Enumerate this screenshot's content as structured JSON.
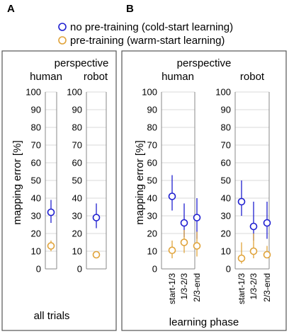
{
  "colors": {
    "series_blue": "#1f1fd0",
    "series_orange": "#e0a33a",
    "frame": "#555555",
    "axis": "#888888",
    "grid": "#d9d9d9"
  },
  "legend": [
    {
      "label": "no pre-training (cold-start learning)",
      "color": "#1f1fd0"
    },
    {
      "label": "pre-training (warm-start learning)",
      "color": "#e0a33a"
    }
  ],
  "panels": {
    "a": {
      "letter": "A",
      "perspective_label": "perspective",
      "bottom_label": "all trials"
    },
    "b": {
      "letter": "B",
      "perspective_label": "perspective",
      "bottom_label": "learning phase"
    }
  },
  "chart_data": [
    {
      "type": "scatter",
      "panel": "A",
      "ylabel": "mapping error [%]",
      "ylim": [
        0,
        100
      ],
      "yticks": [
        0,
        10,
        20,
        30,
        40,
        50,
        60,
        70,
        80,
        90,
        100
      ],
      "subplots": [
        {
          "title": "human",
          "categories": [
            ""
          ],
          "series": [
            {
              "name": "no pre-training (cold-start learning)",
              "values": [
                32
              ],
              "err_low": [
                26
              ],
              "err_high": [
                39
              ]
            },
            {
              "name": "pre-training (warm-start learning)",
              "values": [
                13
              ],
              "err_low": [
                10
              ],
              "err_high": [
                16
              ]
            }
          ]
        },
        {
          "title": "robot",
          "categories": [
            ""
          ],
          "series": [
            {
              "name": "no pre-training (cold-start learning)",
              "values": [
                29
              ],
              "err_low": [
                23
              ],
              "err_high": [
                37
              ]
            },
            {
              "name": "pre-training (warm-start learning)",
              "values": [
                8
              ],
              "err_low": [
                7
              ],
              "err_high": [
                9
              ]
            }
          ]
        }
      ]
    },
    {
      "type": "scatter",
      "panel": "B",
      "ylabel": "mapping error [%]",
      "ylim": [
        0,
        100
      ],
      "yticks": [
        0,
        10,
        20,
        30,
        40,
        50,
        60,
        70,
        80,
        90,
        100
      ],
      "subplots": [
        {
          "title": "human",
          "categories": [
            "start-1/3",
            "1/3-2/3",
            "2/3-end"
          ],
          "series": [
            {
              "name": "no pre-training (cold-start learning)",
              "values": [
                41,
                26,
                29
              ],
              "err_low": [
                33,
                18,
                17
              ],
              "err_high": [
                53,
                37,
                40
              ]
            },
            {
              "name": "pre-training (warm-start learning)",
              "values": [
                10.5,
                15,
                13
              ],
              "err_low": [
                6,
                9,
                7
              ],
              "err_high": [
                16,
                22,
                21
              ]
            }
          ]
        },
        {
          "title": "robot",
          "categories": [
            "start-1/3",
            "1/3-2/3",
            "2/3-end"
          ],
          "series": [
            {
              "name": "no pre-training (cold-start learning)",
              "values": [
                38,
                24,
                26
              ],
              "err_low": [
                30,
                16,
                17
              ],
              "err_high": [
                50,
                38,
                38
              ]
            },
            {
              "name": "pre-training (warm-start learning)",
              "values": [
                6,
                10,
                8
              ],
              "err_low": [
                3,
                6,
                6
              ],
              "err_high": [
                15,
                20,
                13
              ]
            }
          ]
        }
      ]
    }
  ]
}
